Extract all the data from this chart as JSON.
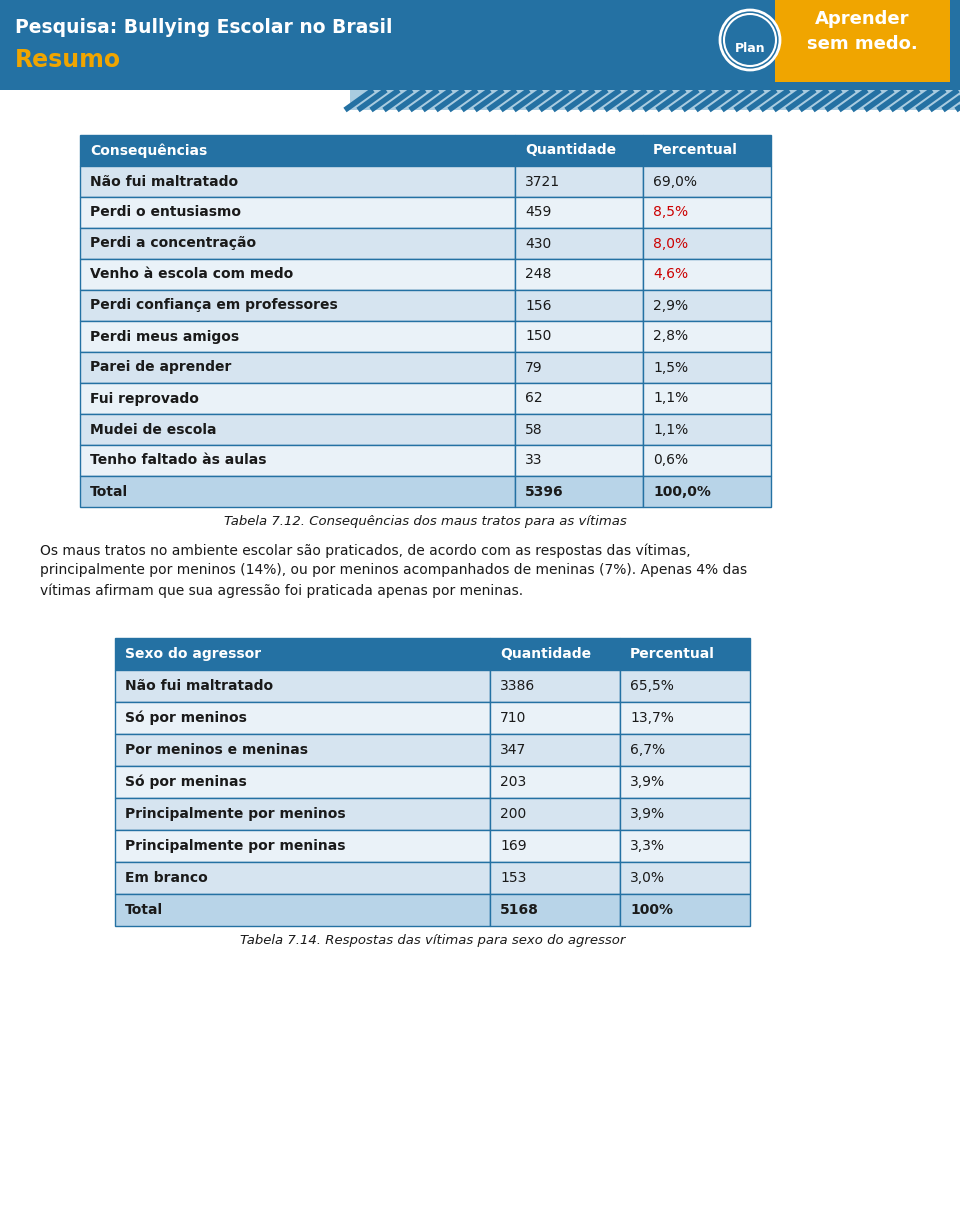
{
  "bg_color": "#ffffff",
  "header_bg": "#2471a3",
  "header_text_color": "#ffffff",
  "header_title": "Pesquisa: Bullying Escolar no Brasil",
  "header_subtitle": "Resumo",
  "header_subtitle_color": "#f0a500",
  "table1_caption": "Tabela 7.12. Consequências dos maus tratos para as vítimas",
  "table1_headers": [
    "Consequências",
    "Quantidade",
    "Percentual"
  ],
  "table1_rows": [
    [
      "Não fui maltratado",
      "3721",
      "69,0%"
    ],
    [
      "Perdi o entusiasmo",
      "459",
      "8,5%"
    ],
    [
      "Perdi a concentração",
      "430",
      "8,0%"
    ],
    [
      "Venho à escola com medo",
      "248",
      "4,6%"
    ],
    [
      "Perdi confiança em professores",
      "156",
      "2,9%"
    ],
    [
      "Perdi meus amigos",
      "150",
      "2,8%"
    ],
    [
      "Parei de aprender",
      "79",
      "1,5%"
    ],
    [
      "Fui reprovado",
      "62",
      "1,1%"
    ],
    [
      "Mudei de escola",
      "58",
      "1,1%"
    ],
    [
      "Tenho faltado às aulas",
      "33",
      "0,6%"
    ],
    [
      "Total",
      "5396",
      "100,0%"
    ]
  ],
  "table1_red_rows": [
    1,
    2,
    3
  ],
  "paragraph_text": "Os maus tratos no ambiente escolar são praticados, de acordo com as respostas das vítimas,\nprincipalmente por meninos (14%), ou por meninos acompanhados de meninas (7%). Apenas 4% das\nvítimas afirmam que sua agressão foi praticada apenas por meninas.",
  "table2_caption": "Tabela 7.14. Respostas das vítimas para sexo do agressor",
  "table2_headers": [
    "Sexo do agressor",
    "Quantidade",
    "Percentual"
  ],
  "table2_rows": [
    [
      "Não fui maltratado",
      "3386",
      "65,5%"
    ],
    [
      "Só por meninos",
      "710",
      "13,7%"
    ],
    [
      "Por meninos e meninas",
      "347",
      "6,7%"
    ],
    [
      "Só por meninas",
      "203",
      "3,9%"
    ],
    [
      "Principalmente por meninos",
      "200",
      "3,9%"
    ],
    [
      "Principalmente por meninas",
      "169",
      "3,3%"
    ],
    [
      "Em branco",
      "153",
      "3,0%"
    ],
    [
      "Total",
      "5168",
      "100%"
    ]
  ],
  "table_border_color": "#2471a3",
  "row_alt_color": "#d6e4f0",
  "row_white_color": "#eaf2f8",
  "header_row_color": "#2471a3",
  "total_row_color": "#b8d4e8",
  "text_color": "#1a1a1a",
  "orange_color": "#f0a500",
  "red_color": "#cc0000",
  "stripe_dark": "#2471a3",
  "stripe_light": "#aacce0"
}
